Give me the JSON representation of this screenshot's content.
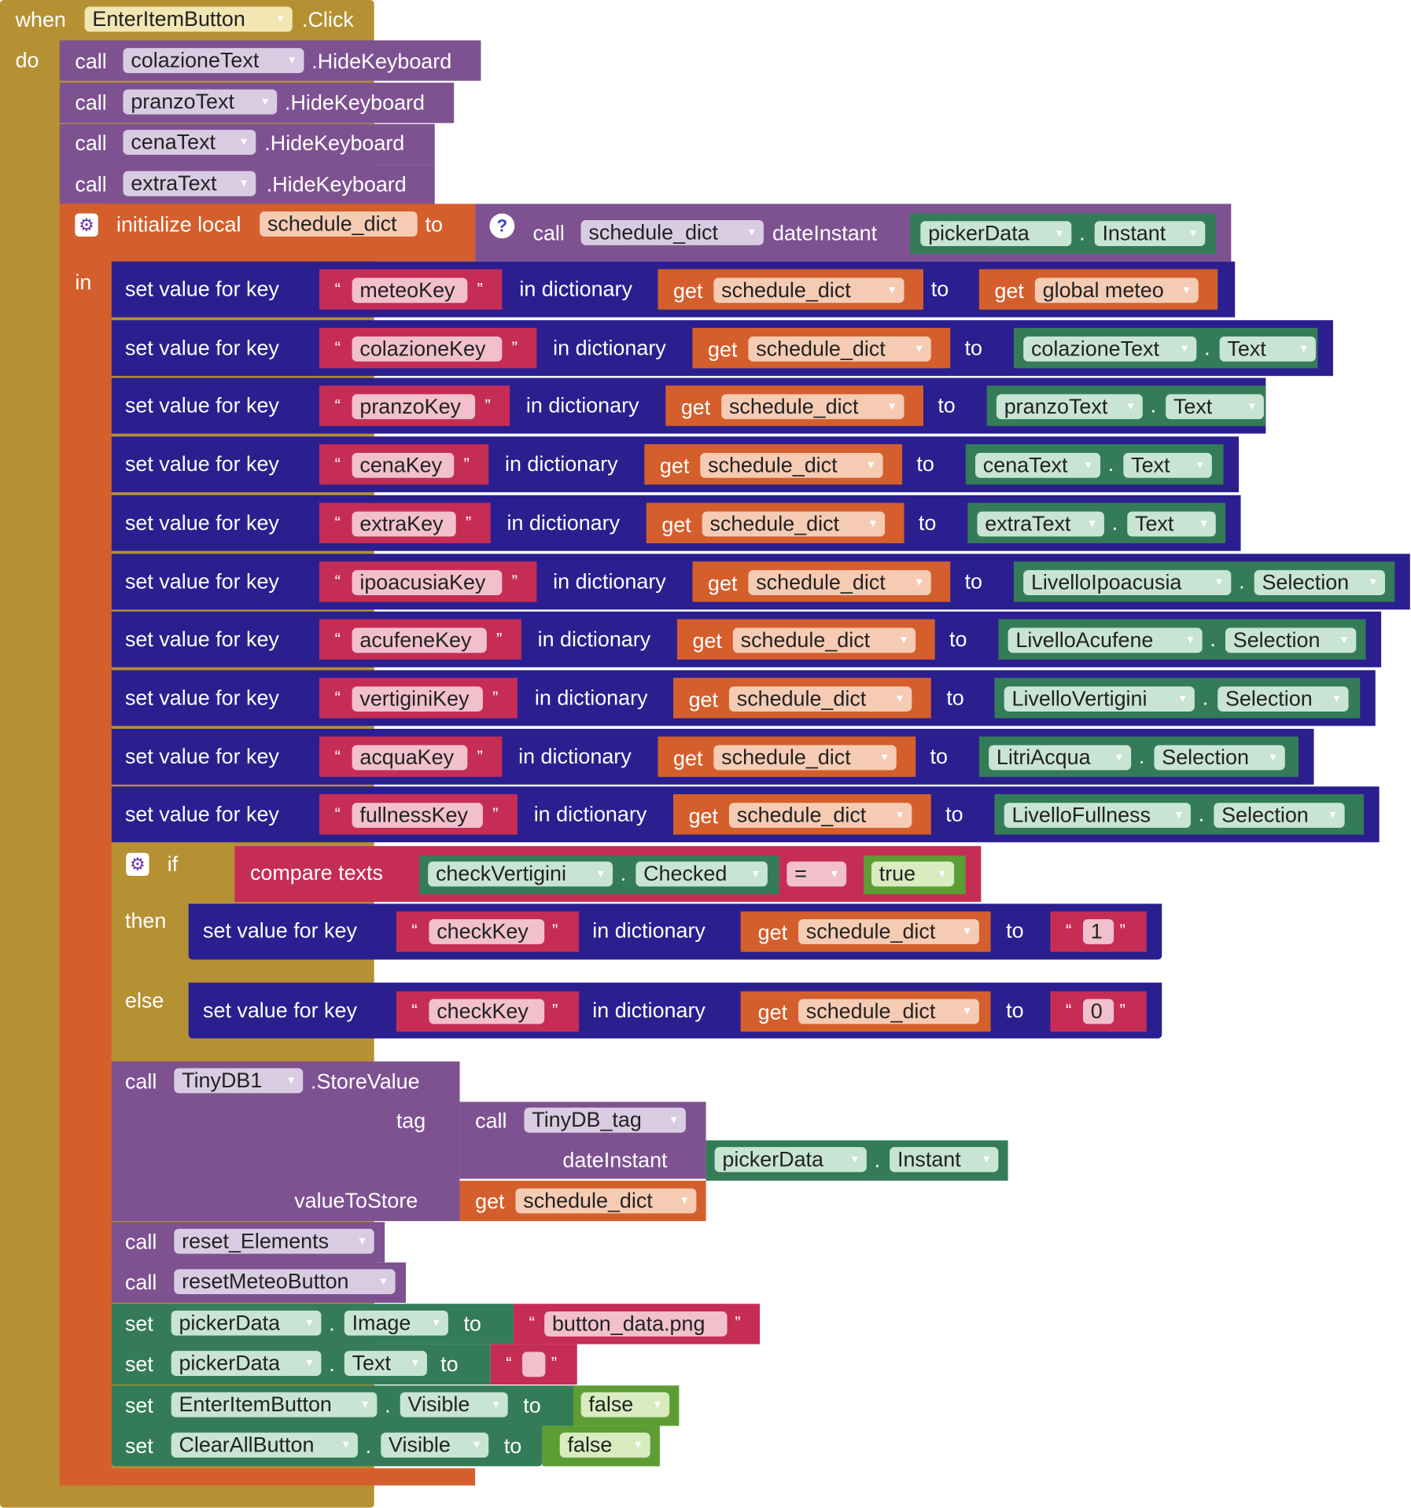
{
  "colors": {
    "event": "#b59133",
    "procedure": "#7e5291",
    "local": "#d45f2c",
    "dict": "#2b1f8f",
    "text": "#c52d55",
    "component": "#347c57",
    "logic": "#5e9d35"
  },
  "icons": [
    "gear-icon",
    "help-icon",
    "dropdown-arrow-icon"
  ],
  "event": {
    "when": "when",
    "component": "EnterItemButton",
    "event_name": ".Click",
    "do": "do"
  },
  "hide_calls": [
    {
      "call": "call",
      "component": "colazioneText",
      "method": ".HideKeyboard"
    },
    {
      "call": "call",
      "component": "pranzoText",
      "method": ".HideKeyboard"
    },
    {
      "call": "call",
      "component": "cenaText",
      "method": ".HideKeyboard"
    },
    {
      "call": "call",
      "component": "extraText",
      "method": ".HideKeyboard"
    }
  ],
  "local": {
    "initialize": "initialize local",
    "var_name": "schedule_dict",
    "to": "to",
    "in": "in",
    "call": "call",
    "proc_name": "schedule_dict",
    "param": "dateInstant",
    "comp": "pickerData",
    "prop": "Instant"
  },
  "set_rows": [
    {
      "label": "set value for key",
      "key": "meteoKey",
      "in_dict": "in dictionary",
      "get": "get",
      "var": "schedule_dict",
      "to": "to",
      "val_get": "get",
      "val_var": "global meteo"
    },
    {
      "label": "set value for key",
      "key": "colazioneKey",
      "in_dict": "in dictionary",
      "get": "get",
      "var": "schedule_dict",
      "to": "to",
      "comp": "colazioneText",
      "prop": "Text"
    },
    {
      "label": "set value for key",
      "key": "pranzoKey",
      "in_dict": "in dictionary",
      "get": "get",
      "var": "schedule_dict",
      "to": "to",
      "comp": "pranzoText",
      "prop": "Text"
    },
    {
      "label": "set value for key",
      "key": "cenaKey",
      "in_dict": "in dictionary",
      "get": "get",
      "var": "schedule_dict",
      "to": "to",
      "comp": "cenaText",
      "prop": "Text"
    },
    {
      "label": "set value for key",
      "key": "extraKey",
      "in_dict": "in dictionary",
      "get": "get",
      "var": "schedule_dict",
      "to": "to",
      "comp": "extraText",
      "prop": "Text"
    },
    {
      "label": "set value for key",
      "key": "ipoacusiaKey",
      "in_dict": "in dictionary",
      "get": "get",
      "var": "schedule_dict",
      "to": "to",
      "comp": "LivelloIpoacusia",
      "prop": "Selection"
    },
    {
      "label": "set value for key",
      "key": "acufeneKey",
      "in_dict": "in dictionary",
      "get": "get",
      "var": "schedule_dict",
      "to": "to",
      "comp": "LivelloAcufene",
      "prop": "Selection"
    },
    {
      "label": "set value for key",
      "key": "vertiginiKey",
      "in_dict": "in dictionary",
      "get": "get",
      "var": "schedule_dict",
      "to": "to",
      "comp": "LivelloVertigini",
      "prop": "Selection"
    },
    {
      "label": "set value for key",
      "key": "acquaKey",
      "in_dict": "in dictionary",
      "get": "get",
      "var": "schedule_dict",
      "to": "to",
      "comp": "LitriAcqua",
      "prop": "Selection"
    },
    {
      "label": "set value for key",
      "key": "fullnessKey",
      "in_dict": "in dictionary",
      "get": "get",
      "var": "schedule_dict",
      "to": "to",
      "comp": "LivelloFullness",
      "prop": "Selection"
    }
  ],
  "ifblock": {
    "if": "if",
    "compare": "compare texts",
    "comp": "checkVertigini",
    "prop": "Checked",
    "op": "=",
    "value": "true",
    "then": "then",
    "else": "else",
    "then_row": {
      "label": "set value for key",
      "key": "checkKey",
      "in_dict": "in dictionary",
      "get": "get",
      "var": "schedule_dict",
      "to": "to",
      "value": "1"
    },
    "else_row": {
      "label": "set value for key",
      "key": "checkKey",
      "in_dict": "in dictionary",
      "get": "get",
      "var": "schedule_dict",
      "to": "to",
      "value": "0"
    }
  },
  "store": {
    "call": "call",
    "component": "TinyDB1",
    "method": ".StoreValue",
    "tag": "tag",
    "tag_call": "call",
    "tag_proc": "TinyDB_tag",
    "tag_param": "dateInstant",
    "tag_comp": "pickerData",
    "tag_prop": "Instant",
    "value_label": "valueToStore",
    "value_get": "get",
    "value_var": "schedule_dict"
  },
  "reset_calls": [
    {
      "call": "call",
      "name": "reset_Elements"
    },
    {
      "call": "call",
      "name": "resetMeteoButton"
    }
  ],
  "setters": [
    {
      "set": "set",
      "comp": "pickerData",
      "prop": "Image",
      "to": "to",
      "value": "button_data.png"
    },
    {
      "set": "set",
      "comp": "pickerData",
      "prop": "Text",
      "to": "to",
      "value": ""
    },
    {
      "set": "set",
      "comp": "EnterItemButton",
      "prop": "Visible",
      "to": "to",
      "value": "false"
    },
    {
      "set": "set",
      "comp": "ClearAllButton",
      "prop": "Visible",
      "to": "to",
      "value": "false"
    }
  ]
}
